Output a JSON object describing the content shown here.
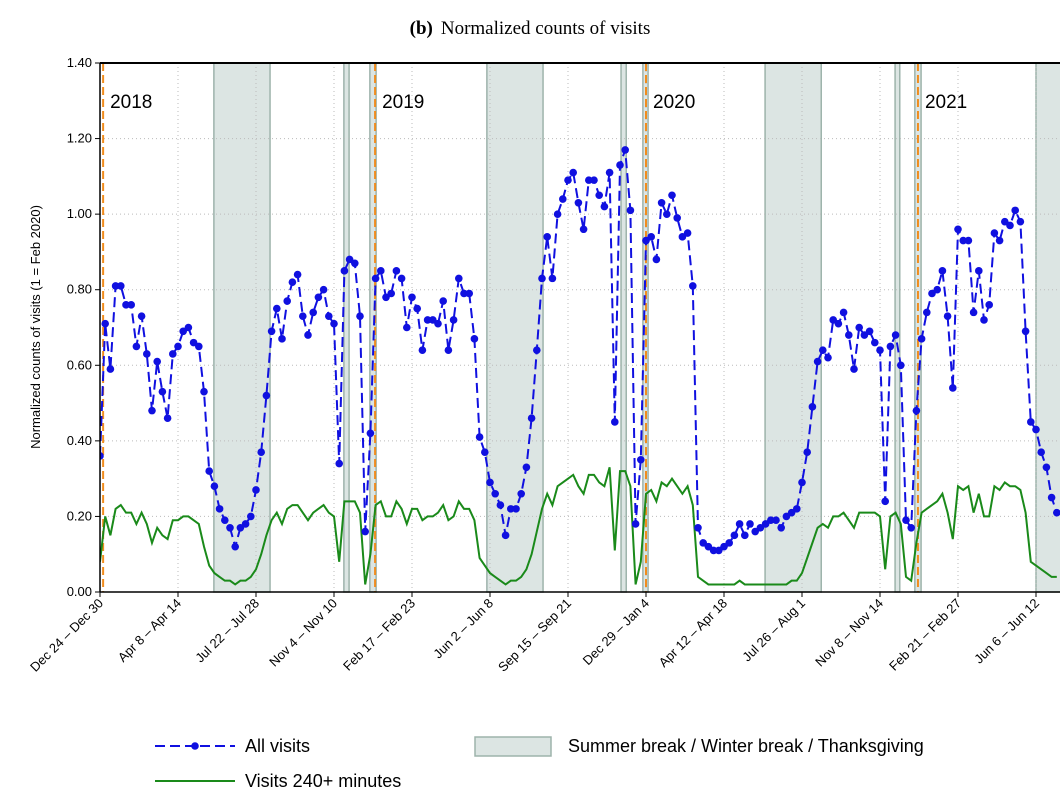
{
  "chart_data": {
    "type": "line",
    "panel_label": "(b)",
    "title": "Normalized counts of visits",
    "y_label": "Normalized counts of visits (1 = Feb 2020)",
    "ylim": [
      0,
      1.4
    ],
    "yticks": [
      {
        "value": 0,
        "label": "0.00"
      },
      {
        "value": 0.2,
        "label": "0.20"
      },
      {
        "value": 0.4,
        "label": "0.40"
      },
      {
        "value": 0.6,
        "label": "0.60"
      },
      {
        "value": 0.8,
        "label": "0.80"
      },
      {
        "value": 1,
        "label": "1.00"
      },
      {
        "value": 1.2,
        "label": "1.20"
      },
      {
        "value": 1.4,
        "label": "1.40"
      }
    ],
    "grid": true,
    "categories": [
      "Dec 24 – Dec 30",
      null,
      null,
      null,
      null,
      null,
      null,
      null,
      null,
      null,
      null,
      null,
      null,
      null,
      null,
      "Apr 8 – Apr 14",
      null,
      null,
      null,
      null,
      null,
      null,
      null,
      null,
      null,
      null,
      null,
      null,
      null,
      null,
      "Jul 22 – Jul 28",
      null,
      null,
      null,
      null,
      null,
      null,
      null,
      null,
      null,
      null,
      null,
      null,
      null,
      null,
      "Nov 4 – Nov 10",
      null,
      null,
      null,
      null,
      null,
      null,
      null,
      null,
      null,
      null,
      null,
      null,
      null,
      null,
      "Feb 17 – Feb 23",
      null,
      null,
      null,
      null,
      null,
      null,
      null,
      null,
      null,
      null,
      null,
      null,
      null,
      null,
      "Jun 2 – Jun 8",
      null,
      null,
      null,
      null,
      null,
      null,
      null,
      null,
      null,
      null,
      null,
      null,
      null,
      null,
      "Sep 15 – Sep 21",
      null,
      null,
      null,
      null,
      null,
      null,
      null,
      null,
      null,
      null,
      null,
      null,
      null,
      null,
      "Dec 29 – Jan 4",
      null,
      null,
      null,
      null,
      null,
      null,
      null,
      null,
      null,
      null,
      null,
      null,
      null,
      null,
      "Apr 12 – Apr 18",
      null,
      null,
      null,
      null,
      null,
      null,
      null,
      null,
      null,
      null,
      null,
      null,
      null,
      null,
      "Jul 26 – Aug 1",
      null,
      null,
      null,
      null,
      null,
      null,
      null,
      null,
      null,
      null,
      null,
      null,
      null,
      null,
      "Nov 8 – Nov 14",
      null,
      null,
      null,
      null,
      null,
      null,
      null,
      null,
      null,
      null,
      null,
      null,
      null,
      null,
      "Feb 21 – Feb 27",
      null,
      null,
      null,
      null,
      null,
      null,
      null,
      null,
      null,
      null,
      null,
      null,
      null,
      null,
      "Jun 6 – Jun 12",
      null,
      null,
      null,
      null
    ],
    "series": [
      {
        "name": "All visits",
        "color": "#1010e0",
        "dashed": true,
        "markers": true,
        "values": [
          0.36,
          0.71,
          0.59,
          0.81,
          0.81,
          0.76,
          0.76,
          0.65,
          0.73,
          0.63,
          0.48,
          0.61,
          0.53,
          0.46,
          0.63,
          0.65,
          0.69,
          0.7,
          0.66,
          0.65,
          0.53,
          0.32,
          0.28,
          0.22,
          0.19,
          0.17,
          0.12,
          0.17,
          0.18,
          0.2,
          0.27,
          0.37,
          0.52,
          0.69,
          0.75,
          0.67,
          0.77,
          0.82,
          0.84,
          0.73,
          0.68,
          0.74,
          0.78,
          0.8,
          0.73,
          0.71,
          0.34,
          0.85,
          0.88,
          0.87,
          0.73,
          0.16,
          0.42,
          0.83,
          0.85,
          0.78,
          0.79,
          0.85,
          0.83,
          0.7,
          0.78,
          0.75,
          0.64,
          0.72,
          0.72,
          0.71,
          0.77,
          0.64,
          0.72,
          0.83,
          0.79,
          0.79,
          0.67,
          0.41,
          0.37,
          0.29,
          0.26,
          0.23,
          0.15,
          0.22,
          0.22,
          0.26,
          0.33,
          0.46,
          0.64,
          0.83,
          0.94,
          0.83,
          1.0,
          1.04,
          1.09,
          1.11,
          1.03,
          0.96,
          1.09,
          1.09,
          1.05,
          1.02,
          1.11,
          0.45,
          1.13,
          1.17,
          1.01,
          0.18,
          0.35,
          0.93,
          0.94,
          0.88,
          1.03,
          1.0,
          1.05,
          0.99,
          0.94,
          0.95,
          0.81,
          0.17,
          0.13,
          0.12,
          0.11,
          0.11,
          0.12,
          0.13,
          0.15,
          0.18,
          0.15,
          0.18,
          0.16,
          0.17,
          0.18,
          0.19,
          0.19,
          0.17,
          0.2,
          0.21,
          0.22,
          0.29,
          0.37,
          0.49,
          0.61,
          0.64,
          0.62,
          0.72,
          0.71,
          0.74,
          0.68,
          0.59,
          0.7,
          0.68,
          0.69,
          0.66,
          0.64,
          0.24,
          0.65,
          0.68,
          0.6,
          0.19,
          0.17,
          0.48,
          0.67,
          0.74,
          0.79,
          0.8,
          0.85,
          0.73,
          0.54,
          0.96,
          0.93,
          0.93,
          0.74,
          0.85,
          0.72,
          0.76,
          0.95,
          0.93,
          0.98,
          0.97,
          1.01,
          0.98,
          0.69,
          0.45,
          0.43,
          0.37,
          0.33,
          0.25,
          0.21
        ]
      },
      {
        "name": "Visits 240+ minutes",
        "color": "#1a8a1a",
        "dashed": false,
        "markers": false,
        "values": [
          0.08,
          0.2,
          0.15,
          0.22,
          0.23,
          0.21,
          0.21,
          0.18,
          0.21,
          0.18,
          0.13,
          0.17,
          0.15,
          0.14,
          0.19,
          0.19,
          0.2,
          0.2,
          0.19,
          0.18,
          0.12,
          0.07,
          0.05,
          0.04,
          0.03,
          0.03,
          0.02,
          0.03,
          0.03,
          0.04,
          0.06,
          0.1,
          0.15,
          0.19,
          0.21,
          0.18,
          0.22,
          0.23,
          0.23,
          0.21,
          0.19,
          0.21,
          0.22,
          0.23,
          0.21,
          0.2,
          0.08,
          0.24,
          0.24,
          0.24,
          0.21,
          0.02,
          0.1,
          0.23,
          0.24,
          0.2,
          0.2,
          0.24,
          0.22,
          0.18,
          0.22,
          0.22,
          0.19,
          0.2,
          0.2,
          0.21,
          0.23,
          0.19,
          0.2,
          0.24,
          0.22,
          0.22,
          0.19,
          0.09,
          0.07,
          0.05,
          0.04,
          0.03,
          0.02,
          0.03,
          0.03,
          0.04,
          0.06,
          0.1,
          0.16,
          0.22,
          0.26,
          0.23,
          0.28,
          0.29,
          0.3,
          0.31,
          0.28,
          0.26,
          0.31,
          0.31,
          0.29,
          0.28,
          0.33,
          0.11,
          0.32,
          0.32,
          0.28,
          0.02,
          0.08,
          0.26,
          0.27,
          0.24,
          0.29,
          0.28,
          0.3,
          0.28,
          0.26,
          0.28,
          0.23,
          0.04,
          0.03,
          0.02,
          0.02,
          0.02,
          0.02,
          0.02,
          0.02,
          0.03,
          0.02,
          0.02,
          0.02,
          0.02,
          0.02,
          0.02,
          0.02,
          0.02,
          0.02,
          0.03,
          0.03,
          0.05,
          0.09,
          0.13,
          0.17,
          0.18,
          0.17,
          0.2,
          0.2,
          0.21,
          0.19,
          0.17,
          0.21,
          0.21,
          0.21,
          0.21,
          0.2,
          0.06,
          0.2,
          0.21,
          0.18,
          0.04,
          0.03,
          0.13,
          0.21,
          0.22,
          0.23,
          0.24,
          0.26,
          0.21,
          0.14,
          0.28,
          0.27,
          0.28,
          0.21,
          0.26,
          0.2,
          0.2,
          0.28,
          0.27,
          0.29,
          0.28,
          0.28,
          0.27,
          0.21,
          0.08,
          0.07,
          0.06,
          0.05,
          0.04,
          0.04
        ]
      }
    ],
    "shade_label": "Summer break / Winter break / Thanksgiving",
    "shade_color": "#dce5e3",
    "break_spans": [
      [
        21.9,
        32.7
      ],
      [
        46.9,
        47.9
      ],
      [
        51.9,
        53.1
      ],
      [
        74.4,
        85.2
      ],
      [
        100.2,
        101.2
      ],
      [
        104.4,
        105.4
      ],
      [
        127.9,
        138.7
      ],
      [
        152.9,
        153.8
      ],
      [
        156.7,
        157.9
      ],
      [
        180,
        185
      ]
    ],
    "year_color": "#f08c1e",
    "year_markers": [
      {
        "label": "2018",
        "x": 0.6
      },
      {
        "label": "2019",
        "x": 52.9
      },
      {
        "label": "2020",
        "x": 105
      },
      {
        "label": "2021",
        "x": 157.3
      }
    ]
  }
}
